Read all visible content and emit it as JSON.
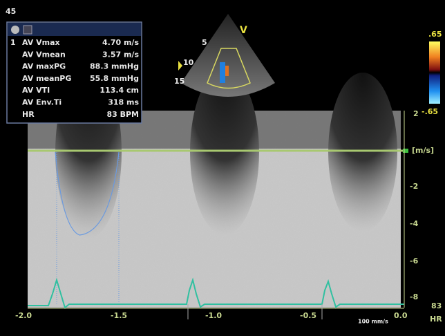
{
  "header": {
    "frame": "45"
  },
  "measurements": {
    "index": "1",
    "rows": [
      [
        "AV Vmax",
        "4.70 m/s"
      ],
      [
        "AV Vmean",
        "3.57 m/s"
      ],
      [
        "AV maxPG",
        "88.3 mmHg"
      ],
      [
        "AV meanPG",
        "55.8 mmHg"
      ],
      [
        "AV VTI",
        "113.4 cm"
      ],
      [
        "AV Env.Ti",
        "318 ms"
      ],
      [
        "HR",
        "83 BPM"
      ]
    ]
  },
  "sector": {
    "view": "V",
    "depths": [
      "5",
      "10",
      "15"
    ]
  },
  "color_bar": {
    "max": ".65",
    "min": "-.65"
  },
  "velocity_scale": {
    "unit": "[m/s]",
    "ticks": [
      "2",
      "-2",
      "-4",
      "-6",
      "-8"
    ]
  },
  "time_axis": {
    "ticks": [
      "-2.0",
      "-1.5",
      "-1.0",
      "-0.5",
      "0.0"
    ],
    "sweep": "100 mm/s"
  },
  "heart_rate": {
    "value": "83",
    "label": "HR"
  }
}
